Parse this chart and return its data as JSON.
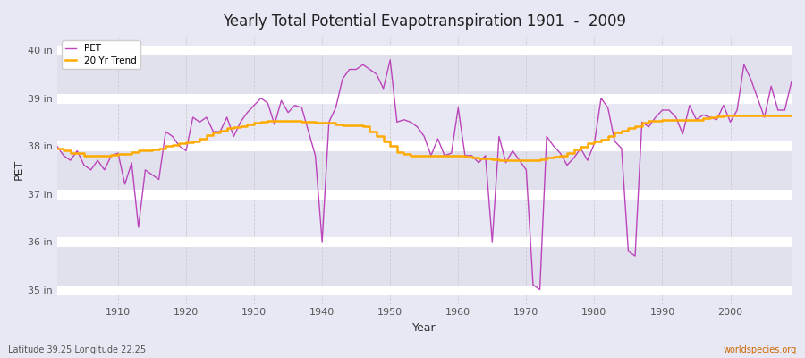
{
  "title": "Yearly Total Potential Evapotranspiration 1901  -  2009",
  "xlabel": "Year",
  "ylabel": "PET",
  "subtitle_left": "Latitude 39.25 Longitude 22.25",
  "subtitle_right": "worldspecies.org",
  "bg_color": "#e8e8f4",
  "plot_bg_color": "#e8e8f4",
  "line_color_pet": "#bb44bb",
  "line_color_trend": "#ffaa00",
  "ylim_min": 34.7,
  "ylim_max": 40.3,
  "xlim_min": 1901,
  "xlim_max": 2009,
  "ytick_labels": [
    "35 in",
    "36 in",
    "37 in",
    "38 in",
    "39 in",
    "40 in"
  ],
  "ytick_values": [
    35,
    36,
    37,
    38,
    39,
    40
  ],
  "xtick_values": [
    1910,
    1920,
    1930,
    1940,
    1950,
    1960,
    1970,
    1980,
    1990,
    2000
  ],
  "years": [
    1901,
    1902,
    1903,
    1904,
    1905,
    1906,
    1907,
    1908,
    1909,
    1910,
    1911,
    1912,
    1913,
    1914,
    1915,
    1916,
    1917,
    1918,
    1919,
    1920,
    1921,
    1922,
    1923,
    1924,
    1925,
    1926,
    1927,
    1928,
    1929,
    1930,
    1931,
    1932,
    1933,
    1934,
    1935,
    1936,
    1937,
    1938,
    1939,
    1940,
    1941,
    1942,
    1943,
    1944,
    1945,
    1946,
    1947,
    1948,
    1949,
    1950,
    1951,
    1952,
    1953,
    1954,
    1955,
    1956,
    1957,
    1958,
    1959,
    1960,
    1961,
    1962,
    1963,
    1964,
    1965,
    1966,
    1967,
    1968,
    1969,
    1970,
    1971,
    1972,
    1973,
    1974,
    1975,
    1976,
    1977,
    1978,
    1979,
    1980,
    1981,
    1982,
    1983,
    1984,
    1985,
    1986,
    1987,
    1988,
    1989,
    1990,
    1991,
    1992,
    1993,
    1994,
    1995,
    1996,
    1997,
    1998,
    1999,
    2000,
    2001,
    2002,
    2003,
    2004,
    2005,
    2006,
    2007,
    2008,
    2009
  ],
  "pet": [
    38.0,
    37.8,
    37.7,
    37.9,
    37.6,
    37.5,
    37.7,
    37.5,
    37.8,
    37.85,
    37.2,
    37.65,
    36.3,
    37.5,
    37.4,
    37.3,
    38.3,
    38.2,
    38.0,
    37.9,
    38.6,
    38.5,
    38.6,
    38.3,
    38.3,
    38.6,
    38.2,
    38.5,
    38.7,
    38.85,
    39.0,
    38.9,
    38.45,
    38.95,
    38.7,
    38.85,
    38.8,
    38.3,
    37.8,
    36.0,
    38.5,
    38.8,
    39.4,
    39.6,
    39.6,
    39.7,
    39.6,
    39.5,
    39.2,
    39.8,
    38.5,
    38.55,
    38.5,
    38.4,
    38.2,
    37.8,
    38.15,
    37.8,
    37.85,
    38.8,
    37.8,
    37.8,
    37.65,
    37.8,
    36.0,
    38.2,
    37.65,
    37.9,
    37.7,
    37.5,
    35.1,
    35.0,
    38.2,
    38.0,
    37.85,
    37.6,
    37.75,
    37.95,
    37.7,
    38.05,
    39.0,
    38.8,
    38.1,
    37.95,
    35.8,
    35.7,
    38.5,
    38.4,
    38.6,
    38.75,
    38.75,
    38.6,
    38.25,
    38.85,
    38.55,
    38.65,
    38.6,
    38.55,
    38.85,
    38.5,
    38.75,
    39.7,
    39.4,
    39.0,
    38.6,
    39.25,
    38.75,
    38.75,
    39.35
  ],
  "trend": [
    37.95,
    37.9,
    37.85,
    37.85,
    37.8,
    37.8,
    37.8,
    37.8,
    37.82,
    37.83,
    37.84,
    37.88,
    37.9,
    37.9,
    37.92,
    37.95,
    38.0,
    38.02,
    38.05,
    38.07,
    38.1,
    38.15,
    38.22,
    38.28,
    38.32,
    38.38,
    38.4,
    38.42,
    38.45,
    38.48,
    38.5,
    38.52,
    38.52,
    38.52,
    38.52,
    38.52,
    38.5,
    38.5,
    38.48,
    38.48,
    38.48,
    38.46,
    38.44,
    38.44,
    38.44,
    38.42,
    38.3,
    38.2,
    38.1,
    38.0,
    37.88,
    37.84,
    37.8,
    37.8,
    37.8,
    37.8,
    37.8,
    37.8,
    37.8,
    37.8,
    37.78,
    37.76,
    37.74,
    37.74,
    37.72,
    37.7,
    37.7,
    37.7,
    37.7,
    37.7,
    37.7,
    37.72,
    37.76,
    37.78,
    37.8,
    37.86,
    37.92,
    37.98,
    38.05,
    38.1,
    38.14,
    38.2,
    38.28,
    38.32,
    38.38,
    38.42,
    38.48,
    38.52,
    38.52,
    38.54,
    38.54,
    38.54,
    38.54,
    38.55,
    38.55,
    38.58,
    38.6,
    38.62,
    38.64,
    38.64,
    38.64,
    38.64,
    38.64,
    38.64,
    38.64,
    38.64,
    38.64,
    38.64,
    38.64
  ]
}
